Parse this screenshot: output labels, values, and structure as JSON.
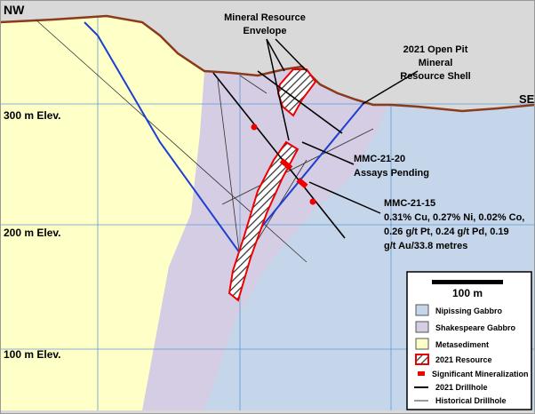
{
  "labels": {
    "nw": "NW",
    "se": "SE"
  },
  "elevations": [
    "300 m Elev.",
    "200 m Elev.",
    "100 m Elev."
  ],
  "annotations": {
    "resource_envelope": [
      "Mineral Resource",
      "Envelope"
    ],
    "pit_shell": [
      "2021 Open Pit",
      "Mineral",
      "Resource Shell"
    ],
    "mmc_21_20": [
      "MMC-21-20",
      "Assays Pending"
    ],
    "mmc_21_15": [
      "MMC-21-15",
      "0.31% Cu, 0.27% Ni, 0.02% Co,",
      "0.26 g/t Pt, 0.24 g/t Pd, 0.19",
      "g/t Au/33.8 metres"
    ]
  },
  "legend": {
    "scale": "100 m",
    "items": [
      "Nipissing Gabbro",
      "Shakespeare Gabbro",
      "Metasediment",
      "2021 Resource",
      "Significant Mineralization",
      "2021 Drillhole",
      "Historical Drillhole"
    ]
  }
}
